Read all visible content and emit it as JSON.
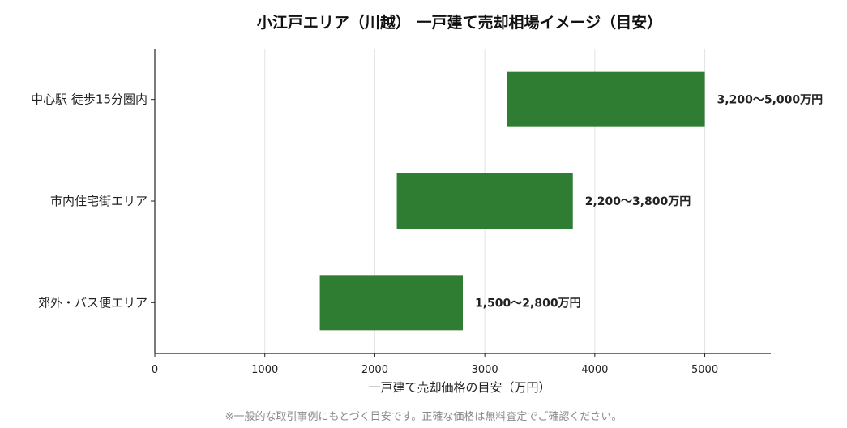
{
  "chart_data": {
    "type": "bar",
    "orientation": "horizontal",
    "floating": true,
    "title": "小江戸エリア（川越） 一戸建て売却相場イメージ（目安）",
    "xlabel": "一戸建て売却価格の目安（万円）",
    "ylabel": "",
    "xlim": [
      0,
      5600
    ],
    "xticks": [
      0,
      1000,
      2000,
      3000,
      4000,
      5000
    ],
    "grid": true,
    "categories": [
      "中心駅 徒歩15分圏内",
      "市内住宅街エリア",
      "郊外・バス便エリア"
    ],
    "ranges": [
      [
        3200,
        5000
      ],
      [
        2200,
        3800
      ],
      [
        1500,
        2800
      ]
    ],
    "data_labels": [
      "3,200〜5,000万円",
      "2,200〜3,800万円",
      "1,500〜2,800万円"
    ],
    "bar_color": "#2e7d32"
  },
  "footnote": "※一般的な取引事例にもとづく目安です。正確な価格は無料査定でご確認ください。"
}
